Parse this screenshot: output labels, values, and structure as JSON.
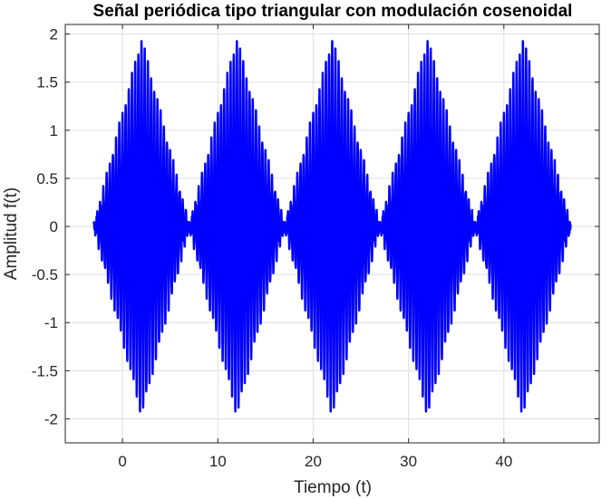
{
  "chart_data": {
    "type": "line",
    "title": "Señal periódica tipo triangular con modulación cosenoidal",
    "xlabel": "Tiempo (t)",
    "ylabel": "Amplitud f(t)",
    "xlim": [
      -6,
      50
    ],
    "ylim": [
      -2.25,
      2.1
    ],
    "xticks": [
      0,
      10,
      20,
      30,
      40
    ],
    "xtick_labels": [
      "0",
      "10",
      "20",
      "30",
      "40"
    ],
    "yticks": [
      -2,
      -1.5,
      -1,
      -0.5,
      0,
      0.5,
      1,
      1.5,
      2
    ],
    "ytick_labels": [
      "-2",
      "-1.5",
      "-1",
      "-0.5",
      "0",
      "0.5",
      "1",
      "1.5",
      "2"
    ],
    "grid": true,
    "series": [
      {
        "color": "#0000ff",
        "x_range": [
          -3,
          47
        ],
        "period": 10,
        "envelope": "triangular, zero at t = -3 + 10k, peak at t = 2 + 10k",
        "envelope_peak": 1.95,
        "carrier": "cosine",
        "carrier_frequency_hz": 3
      }
    ]
  }
}
